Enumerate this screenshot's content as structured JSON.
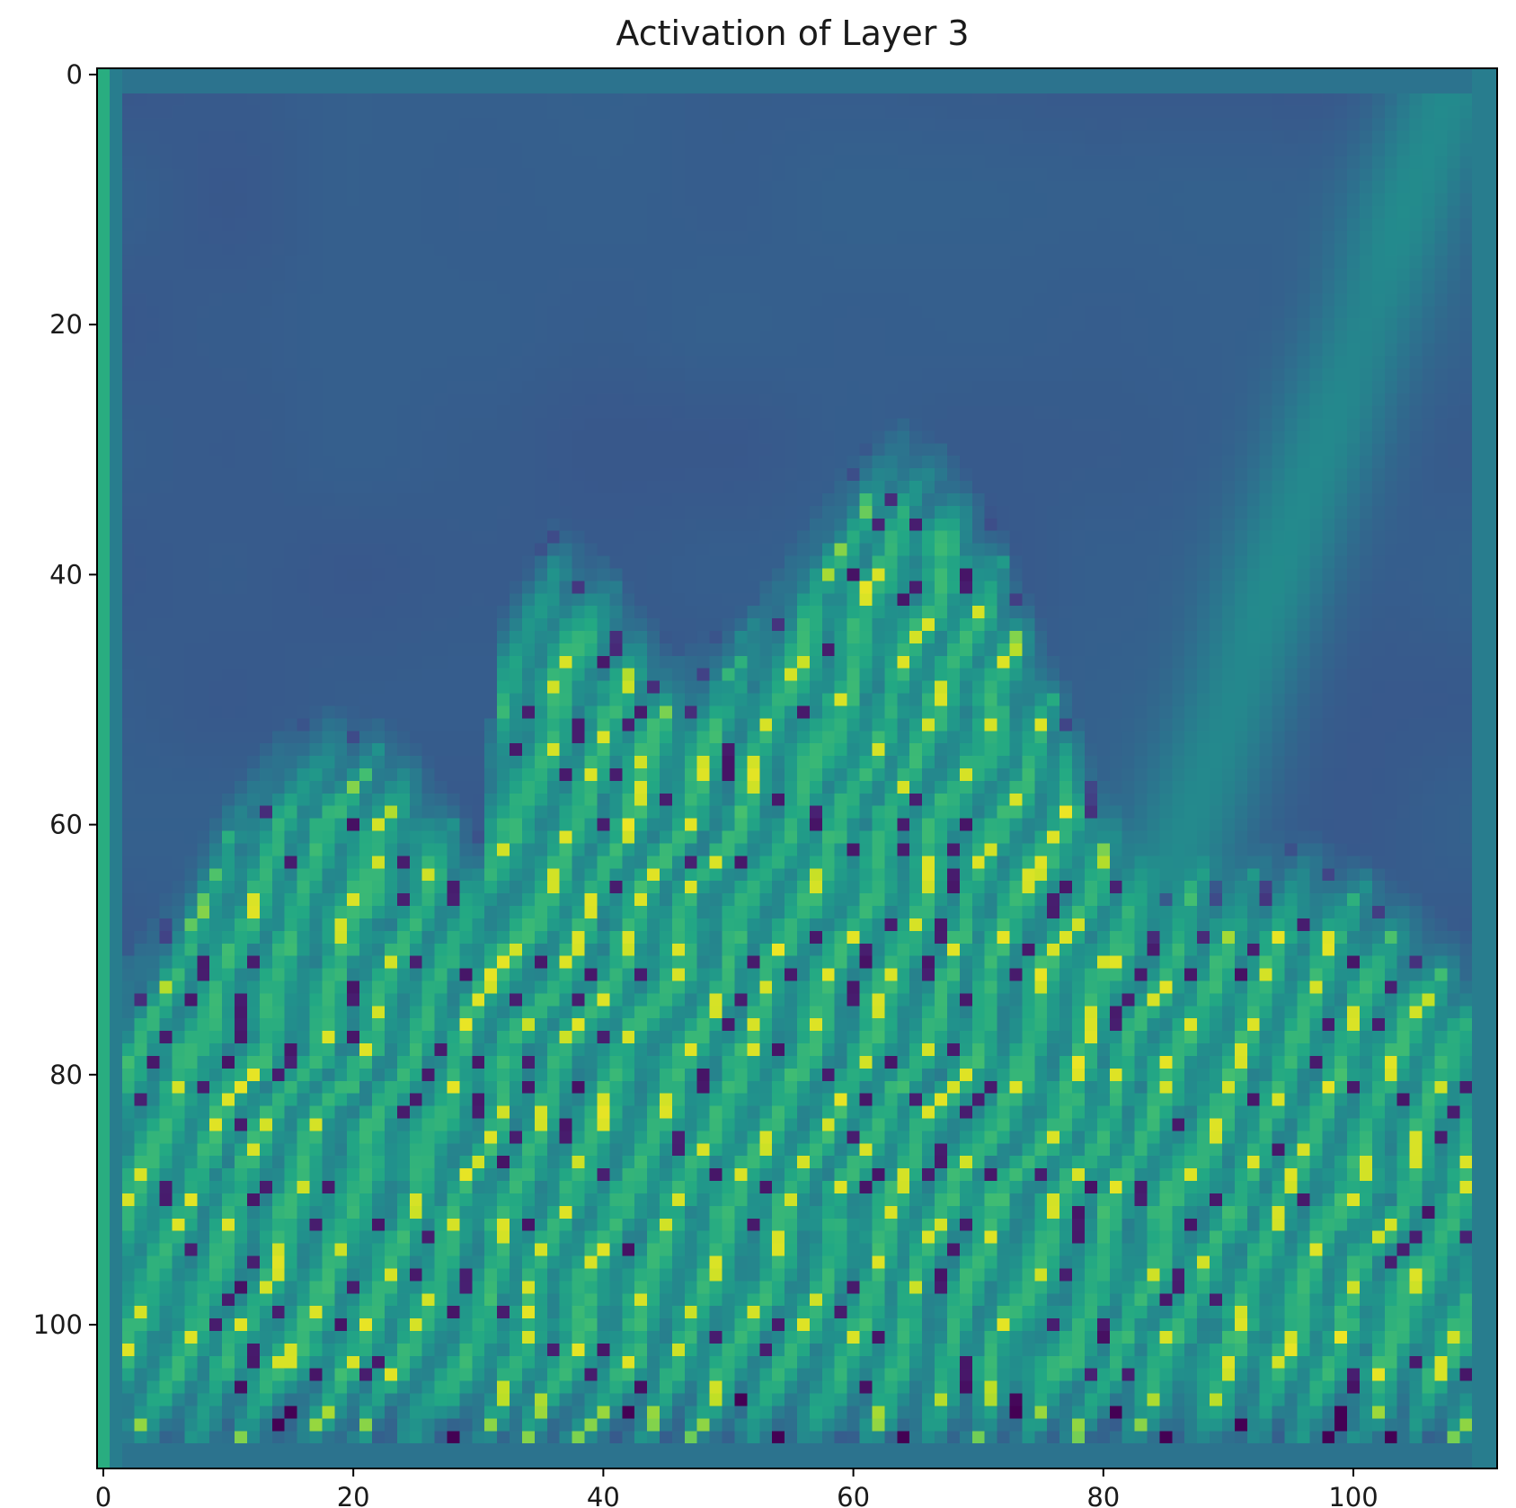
{
  "chart_data": {
    "type": "heatmap",
    "title": "Activation of Layer 3",
    "xlabel": "",
    "ylabel": "",
    "colormap": "viridis",
    "image_size": [
      112,
      112
    ],
    "xlim": [
      -0.5,
      111.5
    ],
    "ylim": [
      111.5,
      -0.5
    ],
    "x_ticks": [
      0,
      20,
      40,
      60,
      80,
      100
    ],
    "y_ticks": [
      0,
      20,
      40,
      60,
      80,
      100
    ],
    "x_tick_labels": [
      "0",
      "20",
      "40",
      "60",
      "80",
      "100"
    ],
    "y_tick_labels": [
      "0",
      "20",
      "40",
      "60",
      "80",
      "100"
    ],
    "grid": false,
    "legend": "none",
    "colors": {
      "viridis_low": "#440154",
      "viridis_mid": "#21918c",
      "viridis_high": "#fde725",
      "axis": "#000000"
    }
  }
}
